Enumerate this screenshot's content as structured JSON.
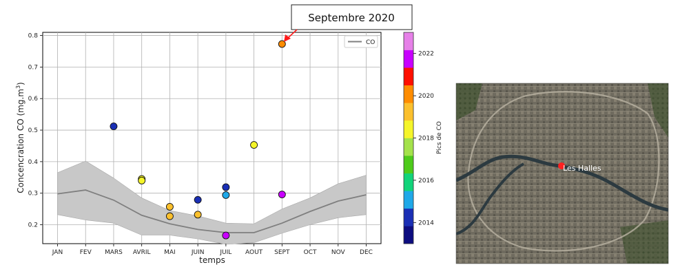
{
  "chart_data": {
    "type": "scatter",
    "xlabel": "temps",
    "ylabel": "Concencration CO (mg.m",
    "ylabel_superscript": "3",
    "ylabel_close": ")",
    "x_ticks": [
      "JAN",
      "FEV",
      "MARS",
      "AVRIL",
      "MAI",
      "JUIN",
      "JUIL",
      "AOUT",
      "SEPT",
      "OCT",
      "NOV",
      "DEC"
    ],
    "y_ticks": [
      "0.2",
      "0.3",
      "0.4",
      "0.5",
      "0.6",
      "0.7",
      "0.8"
    ],
    "ylim": [
      0.14,
      0.81
    ],
    "grid": true,
    "legend": {
      "label": "CO",
      "placement": "top-right"
    },
    "line_series": {
      "name": "CO",
      "color": "#7f7f7f",
      "values": [
        0.298,
        0.31,
        0.278,
        0.23,
        0.203,
        0.185,
        0.175,
        0.175,
        0.205,
        0.242,
        0.275,
        0.295
      ]
    },
    "band": {
      "color": "#c8c8c8",
      "upper": [
        0.365,
        0.402,
        0.348,
        0.285,
        0.245,
        0.228,
        0.205,
        0.203,
        0.25,
        0.285,
        0.33,
        0.357
      ],
      "lower": [
        0.232,
        0.215,
        0.205,
        0.167,
        0.167,
        0.155,
        0.138,
        0.143,
        0.173,
        0.2,
        0.222,
        0.232
      ]
    },
    "points": [
      {
        "month": "MARS",
        "value": 0.512,
        "year": 2014
      },
      {
        "month": "AVRIL",
        "value": 0.345,
        "year": 2018
      },
      {
        "month": "AVRIL",
        "value": 0.34,
        "year": 2018
      },
      {
        "month": "MAI",
        "value": 0.257,
        "year": 2019
      },
      {
        "month": "MAI",
        "value": 0.227,
        "year": 2019
      },
      {
        "month": "JUIN",
        "value": 0.279,
        "year": 2014
      },
      {
        "month": "JUIN",
        "value": 0.232,
        "year": 2019
      },
      {
        "month": "JUIL",
        "value": 0.319,
        "year": 2014
      },
      {
        "month": "JUIL",
        "value": 0.294,
        "year": 2015
      },
      {
        "month": "JUIL",
        "value": 0.166,
        "year": 2022
      },
      {
        "month": "AOUT",
        "value": 0.453,
        "year": 2018
      },
      {
        "month": "SEPT",
        "value": 0.296,
        "year": 2022
      },
      {
        "month": "SEPT",
        "value": 0.773,
        "year": 2020
      }
    ],
    "colorbar": {
      "label": "Pics de CO",
      "ticks": [
        "2014",
        "2016",
        "2018",
        "2020",
        "2022"
      ],
      "range": [
        2013,
        2023
      ],
      "colors": [
        "#0d0d80",
        "#1a2fb5",
        "#1fa8e8",
        "#12d47a",
        "#4ecb1a",
        "#a4e24b",
        "#f5f52a",
        "#fbc02d",
        "#ff8c00",
        "#ff0f00",
        "#c800ff",
        "#e680e8"
      ]
    },
    "annotation": {
      "text": "Septembre 2020",
      "arrow_color": "#ff1a1a"
    }
  },
  "map": {
    "label": "Les Halles",
    "marker_color": "#ff2020"
  }
}
